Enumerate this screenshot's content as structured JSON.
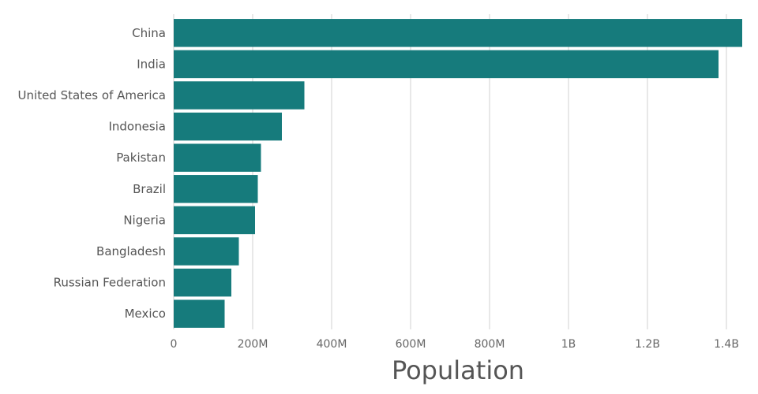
{
  "chart_data": {
    "type": "bar",
    "orientation": "horizontal",
    "categories": [
      "China",
      "India",
      "United States of America",
      "Indonesia",
      "Pakistan",
      "Brazil",
      "Nigeria",
      "Bangladesh",
      "Russian Federation",
      "Mexico"
    ],
    "values": [
      1440000000,
      1380000000,
      331000000,
      274000000,
      221000000,
      213000000,
      206000000,
      165000000,
      146000000,
      129000000
    ],
    "xlabel": "Population",
    "ylabel": "",
    "xlim": [
      0,
      1440000000
    ],
    "x_ticks": [
      {
        "value": 0,
        "label": "0"
      },
      {
        "value": 200000000,
        "label": "200M"
      },
      {
        "value": 400000000,
        "label": "400M"
      },
      {
        "value": 600000000,
        "label": "600M"
      },
      {
        "value": 800000000,
        "label": "800M"
      },
      {
        "value": 1000000000,
        "label": "1B"
      },
      {
        "value": 1200000000,
        "label": "1.2B"
      },
      {
        "value": 1400000000,
        "label": "1.4B"
      }
    ],
    "grid": true,
    "colors": {
      "bar": "#167b7c",
      "grid": "#d0d0d0",
      "text": "#555555"
    }
  }
}
